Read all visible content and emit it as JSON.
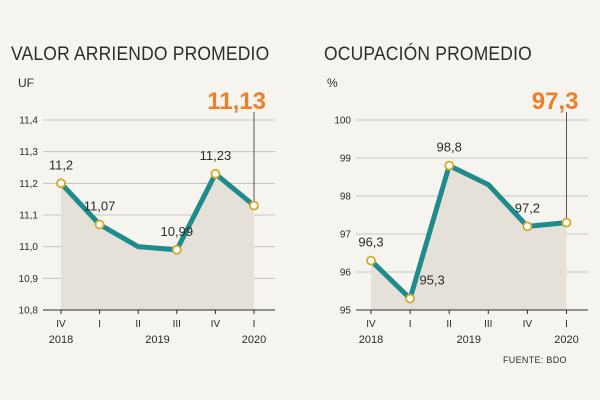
{
  "chart_data": [
    {
      "type": "line",
      "title": "VALOR ARRIENDO PROMEDIO",
      "ylabel": "UF",
      "categories": [
        "IV",
        "I",
        "II",
        "III",
        "IV",
        "I"
      ],
      "year_labels": [
        {
          "text": "2018",
          "index": 0
        },
        {
          "text": "2019",
          "index": 2.5
        },
        {
          "text": "2020",
          "index": 5
        }
      ],
      "series": [
        {
          "values": [
            11.2,
            11.07,
            11.0,
            10.99,
            11.23,
            11.13
          ]
        }
      ],
      "marked_points": [
        0,
        1,
        3,
        4,
        5
      ],
      "data_labels": [
        {
          "index": 0,
          "text": "11,2"
        },
        {
          "index": 1,
          "text": "11,07"
        },
        {
          "index": 3,
          "text": "10,99"
        },
        {
          "index": 4,
          "text": "11,23"
        }
      ],
      "highlight": {
        "index": 5,
        "text": "11,13"
      },
      "ylim": [
        10.8,
        11.4
      ],
      "yticks": [
        {
          "value": 10.8,
          "label": "10,8"
        },
        {
          "value": 10.9,
          "label": "10,9"
        },
        {
          "value": 11.0,
          "label": "11,0"
        },
        {
          "value": 11.1,
          "label": "11,1"
        },
        {
          "value": 11.2,
          "label": "11,2"
        },
        {
          "value": 11.3,
          "label": "11,3"
        },
        {
          "value": 11.4,
          "label": "11,4"
        }
      ],
      "grid": true
    },
    {
      "type": "line",
      "title": "OCUPACIÓN PROMEDIO",
      "ylabel": "%",
      "categories": [
        "IV",
        "I",
        "II",
        "III",
        "IV",
        "I"
      ],
      "year_labels": [
        {
          "text": "2018",
          "index": 0
        },
        {
          "text": "2019",
          "index": 2.5
        },
        {
          "text": "2020",
          "index": 5
        }
      ],
      "series": [
        {
          "values": [
            96.3,
            95.3,
            98.8,
            98.3,
            97.2,
            97.3
          ]
        }
      ],
      "marked_points": [
        0,
        1,
        2,
        4,
        5
      ],
      "data_labels": [
        {
          "index": 0,
          "text": "96,3"
        },
        {
          "index": 1,
          "text": "95,3"
        },
        {
          "index": 2,
          "text": "98,8"
        },
        {
          "index": 4,
          "text": "97,2"
        }
      ],
      "highlight": {
        "index": 5,
        "text": "97,3"
      },
      "ylim": [
        95,
        100
      ],
      "yticks": [
        {
          "value": 95,
          "label": "95"
        },
        {
          "value": 96,
          "label": "96"
        },
        {
          "value": 97,
          "label": "97"
        },
        {
          "value": 98,
          "label": "98"
        },
        {
          "value": 99,
          "label": "99"
        },
        {
          "value": 100,
          "label": "100"
        }
      ],
      "grid": true
    }
  ],
  "source": "FUENTE: BDO",
  "colors": {
    "line": "#1e8c8c",
    "area": "#e6e1d8",
    "marker_fill": "#ffffff",
    "marker_stroke": "#d4a92a",
    "highlight": "#f07d28",
    "text": "#2c2c2c",
    "grid": "#bdb9b2"
  }
}
